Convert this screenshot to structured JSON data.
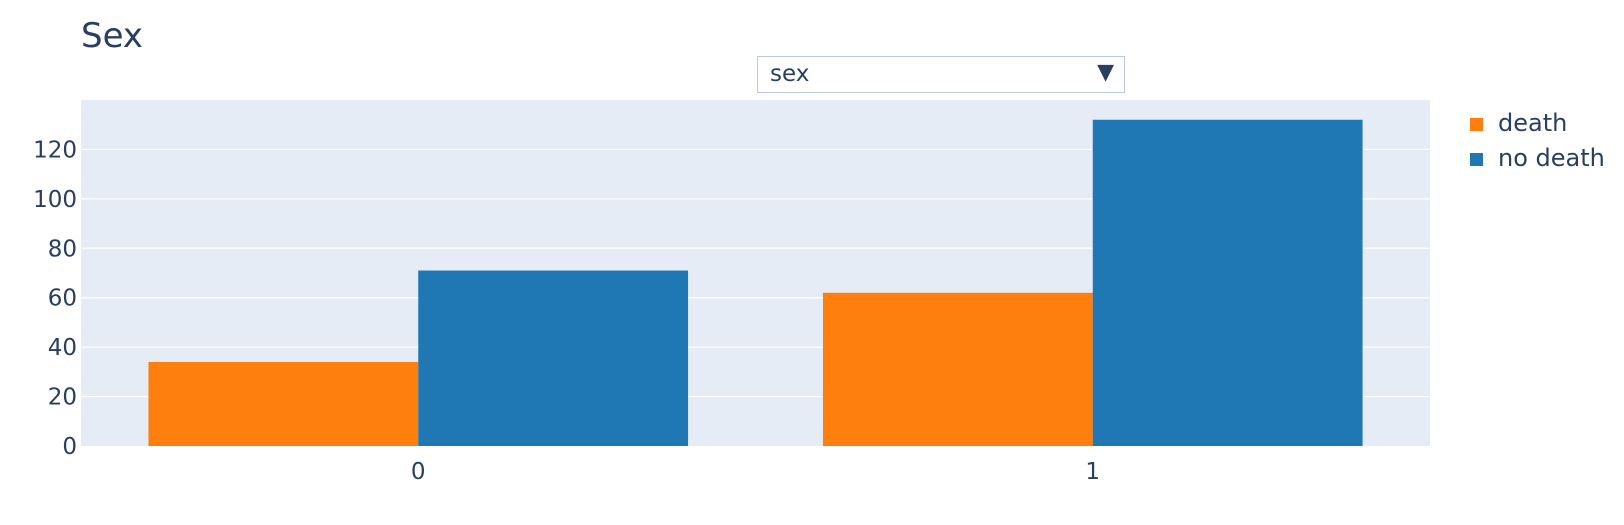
{
  "title": "Sex",
  "dropdown": {
    "selected": "sex",
    "arrow": "▼"
  },
  "chart_data": {
    "type": "bar",
    "barmode": "group",
    "title": "Sex",
    "xlabel": "",
    "ylabel": "",
    "categories": [
      "0",
      "1"
    ],
    "series": [
      {
        "name": "death",
        "color": "#ff7f0e",
        "values": [
          34,
          62
        ]
      },
      {
        "name": "no death",
        "color": "#1f77b4",
        "values": [
          71,
          132
        ]
      }
    ],
    "ylim": [
      0,
      140
    ],
    "yticks": [
      0,
      20,
      40,
      60,
      80,
      100,
      120
    ],
    "grid": true,
    "plot_background": "#e5ecf6",
    "legend_position": "right"
  }
}
